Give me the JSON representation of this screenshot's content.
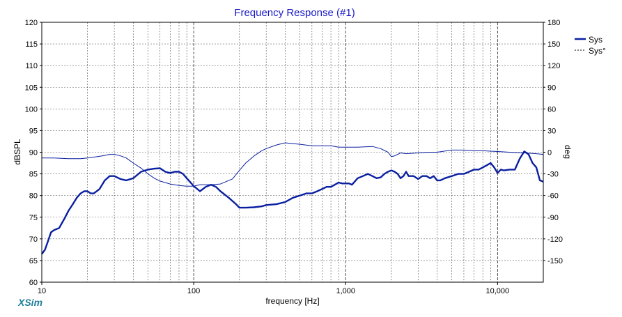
{
  "chart_data": {
    "type": "line",
    "title": "Frequency Response (#1)",
    "xlabel": "frequency [Hz]",
    "ylabel": "dBSPL",
    "y2label": "deg",
    "xscale": "log",
    "xlim": [
      10,
      20000
    ],
    "ylim": [
      60,
      120
    ],
    "y2lim": [
      -180,
      180
    ],
    "xticks": [
      10,
      100,
      1000,
      10000
    ],
    "xtick_labels": [
      "10",
      "100",
      "1,000",
      "10,000"
    ],
    "yticks": [
      60,
      65,
      70,
      75,
      80,
      85,
      90,
      95,
      100,
      105,
      110,
      115,
      120
    ],
    "y2ticks": [
      -150,
      -120,
      -90,
      -60,
      -30,
      0,
      30,
      60,
      90,
      120,
      150,
      180
    ],
    "grid": true,
    "legend_position": "top-right",
    "series": [
      {
        "name": "Sys",
        "axis": "left",
        "style": "solid-bold",
        "color": "#0a1fa0",
        "x": [
          10,
          10.5,
          11,
          11.5,
          12,
          13,
          14,
          15,
          16,
          17,
          18,
          19,
          20,
          21,
          22,
          24,
          26,
          28,
          30,
          33,
          36,
          40,
          45,
          50,
          55,
          60,
          65,
          70,
          75,
          80,
          85,
          90,
          100,
          110,
          120,
          130,
          140,
          150,
          170,
          190,
          200,
          220,
          250,
          280,
          300,
          350,
          400,
          450,
          500,
          550,
          600,
          650,
          700,
          750,
          800,
          850,
          900,
          950,
          1000,
          1050,
          1100,
          1200,
          1300,
          1400,
          1500,
          1600,
          1700,
          1800,
          1900,
          2000,
          2100,
          2200,
          2300,
          2400,
          2500,
          2600,
          2800,
          3000,
          3200,
          3400,
          3600,
          3800,
          4000,
          4200,
          4500,
          5000,
          5500,
          6000,
          6500,
          7000,
          7500,
          8000,
          8500,
          9000,
          9500,
          10000,
          10500,
          11000,
          12000,
          13000,
          14000,
          15000,
          16000,
          17000,
          18000,
          19000,
          20000
        ],
        "values": [
          66.5,
          67.5,
          69.5,
          71.5,
          72.0,
          72.5,
          74.5,
          76.5,
          78.0,
          79.5,
          80.5,
          81.0,
          81.0,
          80.5,
          80.5,
          81.5,
          83.5,
          84.5,
          84.5,
          83.8,
          83.5,
          84.0,
          85.5,
          86.0,
          86.2,
          86.3,
          85.5,
          85.2,
          85.5,
          85.5,
          85.0,
          84.0,
          82.2,
          81.0,
          82.0,
          82.5,
          82.0,
          81.0,
          79.5,
          78.0,
          77.2,
          77.2,
          77.3,
          77.5,
          77.8,
          78.0,
          78.5,
          79.5,
          80.0,
          80.5,
          80.5,
          81.0,
          81.5,
          82.0,
          82.0,
          82.5,
          83.0,
          82.8,
          82.8,
          82.8,
          82.5,
          84.0,
          84.5,
          85.0,
          84.5,
          84.0,
          84.2,
          85.0,
          85.5,
          85.8,
          85.5,
          85.0,
          84.0,
          84.5,
          85.5,
          84.5,
          84.5,
          83.8,
          84.5,
          84.5,
          84.0,
          84.5,
          83.5,
          83.5,
          84.0,
          84.5,
          85.0,
          85.0,
          85.5,
          86.0,
          86.0,
          86.5,
          87.0,
          87.5,
          86.5,
          85.2,
          86.0,
          85.8,
          86.0,
          86.0,
          88.5,
          90.2,
          89.5,
          87.5,
          86.5,
          83.5,
          83.2
        ]
      },
      {
        "name": "Sys°",
        "axis": "right",
        "style": "solid-thin",
        "color": "#0a1fa0",
        "x": [
          10,
          12,
          15,
          18,
          20,
          25,
          28,
          30,
          33,
          36,
          40,
          45,
          50,
          55,
          60,
          70,
          80,
          90,
          100,
          110,
          120,
          130,
          150,
          180,
          200,
          220,
          250,
          280,
          300,
          350,
          400,
          450,
          500,
          600,
          700,
          800,
          900,
          1000,
          1200,
          1500,
          1700,
          1900,
          2000,
          2100,
          2300,
          2500,
          3000,
          3500,
          4000,
          5000,
          6000,
          7000,
          8000,
          10000,
          12000,
          15000,
          18000,
          20000
        ],
        "values": [
          -8,
          -8,
          -9,
          -9,
          -8,
          -5,
          -3,
          -3,
          -5,
          -8,
          -15,
          -22,
          -30,
          -36,
          -40,
          -44,
          -46,
          -47,
          -47,
          -45,
          -45,
          -45,
          -44,
          -37,
          -25,
          -15,
          -5,
          2,
          5,
          10,
          13,
          12,
          11,
          9,
          9,
          9,
          7,
          7,
          7,
          8,
          5,
          0,
          -6,
          -5,
          -1,
          -2,
          -1,
          0,
          0,
          3,
          3,
          2,
          2,
          1,
          0,
          -1,
          -2,
          -3
        ]
      }
    ]
  },
  "footer": {
    "brand": "XSim"
  }
}
